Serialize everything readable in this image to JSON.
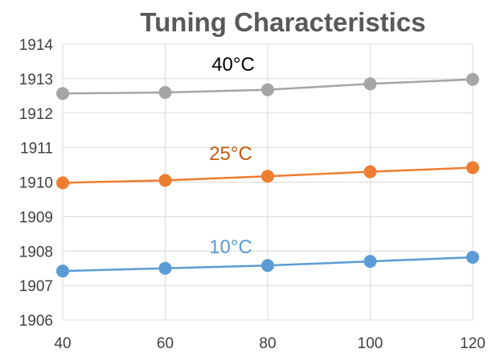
{
  "chart_data": {
    "type": "line",
    "title": "Tuning Characteristics",
    "xlabel": "",
    "ylabel": "",
    "x": [
      40,
      60,
      80,
      100,
      120
    ],
    "xlim": [
      40,
      120
    ],
    "ylim": [
      1906,
      1914
    ],
    "x_ticks": [
      "40",
      "60",
      "80",
      "100",
      "120"
    ],
    "y_ticks": [
      "1906",
      "1907",
      "1908",
      "1909",
      "1910",
      "1911",
      "1912",
      "1913",
      "1914"
    ],
    "grid": true,
    "series": [
      {
        "name": "40°C",
        "label": "40°C",
        "color": "#a5a5a5",
        "label_color": "#000000",
        "values": [
          1912.57,
          1912.6,
          1912.68,
          1912.85,
          1912.98
        ]
      },
      {
        "name": "25°C",
        "label": "25°C",
        "color": "#ed7d31",
        "label_color": "#c55a11",
        "values": [
          1909.98,
          1910.05,
          1910.17,
          1910.3,
          1910.42
        ]
      },
      {
        "name": "10°C",
        "label": "10°C",
        "color": "#5b9bd5",
        "label_color": "#5b9bd5",
        "values": [
          1907.42,
          1907.5,
          1907.58,
          1907.7,
          1907.82
        ]
      }
    ]
  }
}
